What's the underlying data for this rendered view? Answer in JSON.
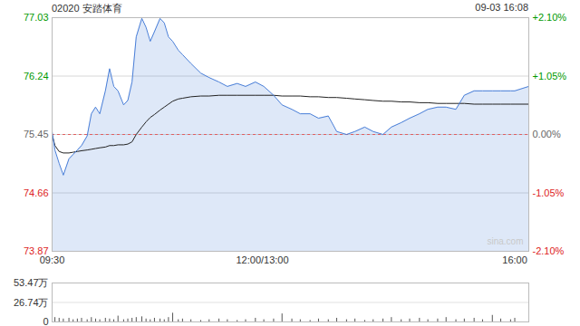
{
  "chart_data": {
    "type": "line",
    "title": "02020 安踏体育",
    "subtitle": "09-03 16:08",
    "x": [
      0,
      2,
      5,
      8,
      12,
      15,
      18,
      21,
      25,
      28,
      31,
      34,
      38,
      41,
      44,
      47,
      51,
      54,
      57,
      60,
      64,
      67,
      70,
      73,
      77,
      80,
      83,
      86,
      90,
      93,
      99,
      106,
      112,
      119,
      125,
      132,
      138,
      145,
      151,
      158,
      164,
      171,
      177,
      184,
      190,
      197,
      203,
      210,
      216,
      223,
      229,
      236,
      242,
      249,
      255,
      262,
      268,
      275,
      281,
      288,
      294,
      301,
      307,
      314,
      320,
      327,
      330,
      340
    ],
    "xlim": [
      0,
      340
    ],
    "xticks": [
      {
        "value": 0,
        "label": "09:30"
      },
      {
        "value": 150,
        "label": "12:00/13:00"
      },
      {
        "value": 330,
        "label": "16:00"
      }
    ],
    "ylim": [
      73.87,
      77.03
    ],
    "yticks": [
      73.87,
      74.66,
      75.45,
      76.24,
      77.03
    ],
    "y2lim": [
      -2.1,
      2.1
    ],
    "y2ticks": [
      {
        "value": 2.1,
        "label": "+2.10%"
      },
      {
        "value": 1.05,
        "label": "+1.05%"
      },
      {
        "value": 0,
        "label": "0.00%"
      },
      {
        "value": -1.05,
        "label": "-1.05%"
      },
      {
        "value": -2.1,
        "label": "-2.10%"
      }
    ],
    "prev_close": 75.45,
    "grid": true,
    "series": [
      {
        "color": "#4a7fd8",
        "values": [
          75.49,
          75.24,
          75.06,
          74.9,
          75.12,
          75.18,
          75.24,
          75.3,
          75.43,
          75.73,
          75.82,
          75.73,
          76.04,
          76.34,
          76.1,
          76.04,
          75.85,
          75.91,
          76.16,
          76.77,
          77.02,
          76.9,
          76.71,
          76.84,
          77.02,
          76.96,
          76.77,
          76.71,
          76.59,
          76.53,
          76.41,
          76.28,
          76.22,
          76.16,
          76.1,
          76.14,
          76.1,
          76.16,
          76.1,
          75.98,
          75.85,
          75.79,
          75.73,
          75.73,
          75.67,
          75.7,
          75.49,
          75.45,
          75.49,
          75.55,
          75.49,
          75.45,
          75.55,
          75.61,
          75.67,
          75.73,
          75.79,
          75.82,
          75.82,
          75.79,
          75.98,
          76.04,
          76.04,
          76.04,
          76.04,
          76.04,
          76.04,
          76.1
        ]
      },
      {
        "color": "#222222",
        "values": [
          75.45,
          75.3,
          75.22,
          75.2,
          75.2,
          75.21,
          75.22,
          75.23,
          75.24,
          75.25,
          75.26,
          75.27,
          75.28,
          75.3,
          75.3,
          75.31,
          75.31,
          75.32,
          75.35,
          75.45,
          75.55,
          75.62,
          75.68,
          75.72,
          75.78,
          75.82,
          75.86,
          75.9,
          75.93,
          75.94,
          75.96,
          75.97,
          75.97,
          75.98,
          75.98,
          75.98,
          75.98,
          75.98,
          75.98,
          75.98,
          75.97,
          75.97,
          75.97,
          75.96,
          75.96,
          75.95,
          75.95,
          75.94,
          75.93,
          75.92,
          75.91,
          75.9,
          75.9,
          75.89,
          75.89,
          75.88,
          75.88,
          75.87,
          75.87,
          75.87,
          75.87,
          75.86,
          75.86,
          75.86,
          75.86,
          75.86,
          75.86,
          75.86
        ]
      }
    ],
    "volume": {
      "color": "#555555",
      "ylim": [
        0,
        53.47
      ],
      "yticks": [
        0,
        {
          "value": 26.74,
          "label": "26.74万"
        },
        {
          "value": 53.47,
          "label": "53.47万"
        }
      ],
      "values": [
        12,
        6,
        5,
        4,
        5,
        3,
        4,
        5,
        3,
        6,
        4,
        3,
        5,
        4,
        3,
        8,
        3,
        4,
        5,
        6,
        7,
        4,
        3,
        5,
        4,
        3,
        6,
        12,
        3,
        4,
        3,
        2,
        3,
        4,
        3,
        2,
        3,
        5,
        3,
        4,
        11,
        4,
        3,
        2,
        4,
        3,
        5,
        3,
        4,
        2,
        3,
        4,
        6,
        3,
        4,
        5,
        3,
        4,
        6,
        3,
        4,
        5,
        3,
        9,
        4,
        3,
        5,
        14
      ]
    },
    "annotations": [
      "sina.com"
    ]
  }
}
